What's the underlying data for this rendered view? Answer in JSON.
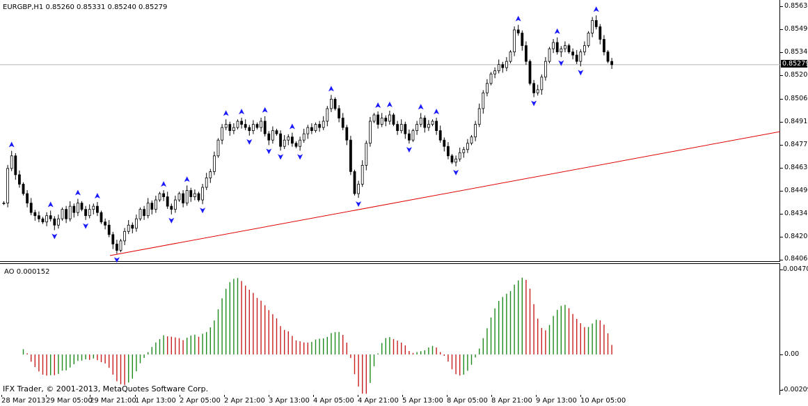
{
  "header": {
    "symbol_info": "EURGBP,H1  0.85260 0.85331 0.85240 0.85279"
  },
  "price_scale": [
    "0.85630",
    "0.85490",
    "0.85346",
    "0.85200",
    "0.85060",
    "0.84915",
    "0.84775",
    "0.84630",
    "0.84490",
    "0.84345",
    "0.84200",
    "0.84060"
  ],
  "last_price": "0.85279",
  "ao": {
    "label": "AO 0.000152",
    "scale": [
      "0.004705",
      "0.00",
      "-0.002094"
    ]
  },
  "copyright": "IFX Trader, © 2001-2013, MetaQuotes Software Corp.",
  "time_axis": [
    "28 Mar 2013",
    "29 Mar 05:00",
    "29 Mar 21:00",
    "1 Apr 13:00",
    "2 Apr 05:00",
    "2 Apr 21:00",
    "3 Apr 13:00",
    "4 Apr 05:00",
    "4 Apr 21:00",
    "5 Apr 13:00",
    "8 Apr 05:00",
    "8 Apr 21:00",
    "9 Apr 13:00",
    "10 Apr 05:00"
  ],
  "colors": {
    "candle": "#000000",
    "trendline": "#e00000",
    "fractal": "#1a1aff",
    "ao_up": "#1e8a1e",
    "ao_down": "#c81e1e",
    "grid_line": "#b4b4b4"
  },
  "icons": {
    "fractal_up": "fractal-up-arrow-icon",
    "fractal_down": "fractal-down-arrow-icon"
  },
  "chart_data": {
    "type": "candlestick",
    "symbol": "EURGBP",
    "timeframe": "H1",
    "ylim": [
      0.8404,
      0.8565
    ],
    "last_close": 0.85279,
    "closes": [
      0.844,
      0.8462,
      0.847,
      0.8458,
      0.8452,
      0.8446,
      0.844,
      0.8434,
      0.8432,
      0.843,
      0.8428,
      0.8432,
      0.843,
      0.8426,
      0.843,
      0.8436,
      0.843,
      0.8438,
      0.8434,
      0.844,
      0.8436,
      0.8432,
      0.8436,
      0.8438,
      0.8434,
      0.8428,
      0.8426,
      0.842,
      0.8414,
      0.841,
      0.8416,
      0.8422,
      0.8426,
      0.8424,
      0.843,
      0.8436,
      0.8432,
      0.844,
      0.8436,
      0.8442,
      0.8446,
      0.8444,
      0.8438,
      0.8436,
      0.8442,
      0.8446,
      0.844,
      0.8448,
      0.8444,
      0.8446,
      0.8442,
      0.845,
      0.8456,
      0.846,
      0.847,
      0.848,
      0.8488,
      0.849,
      0.8486,
      0.8488,
      0.8492,
      0.849,
      0.8488,
      0.8486,
      0.849,
      0.8488,
      0.8492,
      0.8484,
      0.848,
      0.8486,
      0.8484,
      0.8476,
      0.848,
      0.8482,
      0.8478,
      0.8476,
      0.848,
      0.8484,
      0.8488,
      0.8486,
      0.849,
      0.8488,
      0.8492,
      0.85,
      0.8506,
      0.85,
      0.8494,
      0.8488,
      0.848,
      0.846,
      0.8446,
      0.8452,
      0.8464,
      0.8478,
      0.8492,
      0.8496,
      0.849,
      0.8494,
      0.8492,
      0.8496,
      0.849,
      0.8486,
      0.849,
      0.8484,
      0.848,
      0.8486,
      0.849,
      0.8494,
      0.8488,
      0.849,
      0.8492,
      0.8486,
      0.848,
      0.8476,
      0.847,
      0.8466,
      0.8468,
      0.8472,
      0.8474,
      0.8478,
      0.8482,
      0.849,
      0.85,
      0.851,
      0.8516,
      0.8522,
      0.8524,
      0.8528,
      0.8526,
      0.853,
      0.8536,
      0.855,
      0.8548,
      0.854,
      0.853,
      0.8516,
      0.851,
      0.8512,
      0.852,
      0.853,
      0.8538,
      0.8542,
      0.8536,
      0.8538,
      0.854,
      0.8536,
      0.8534,
      0.853,
      0.8536,
      0.854,
      0.8548,
      0.8556,
      0.8552,
      0.8544,
      0.8536,
      0.853,
      0.85279
    ]
  }
}
